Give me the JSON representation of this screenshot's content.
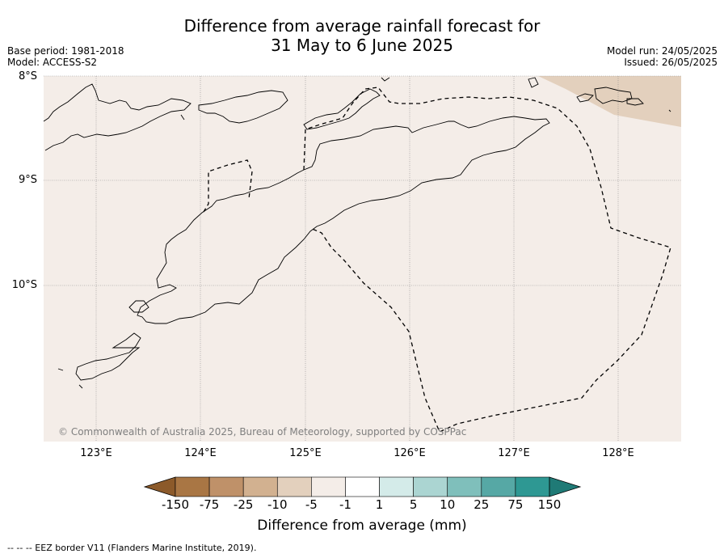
{
  "title_line1": "Difference from average rainfall forecast for",
  "title_line2": "31 May to 6 June 2025",
  "base_period": "Base period: 1981-2018",
  "model": "Model: ACCESS-S2",
  "model_run": "Model run: 24/05/2025",
  "issued": "Issued: 26/05/2025",
  "copyright": "© Commonwealth of Australia 2025, Bureau of Meteorology, supported by COSPPac",
  "lat_ticks": [
    "8°S",
    "9°S",
    "10°S"
  ],
  "lon_ticks": [
    "123°E",
    "124°E",
    "125°E",
    "126°E",
    "127°E",
    "128°E"
  ],
  "colorbar": {
    "title": "Difference from average (mm)",
    "labels": [
      "-150",
      "-75",
      "-25",
      "-10",
      "-5",
      "-1",
      "1",
      "5",
      "10",
      "25",
      "75",
      "150"
    ],
    "colors": [
      "#8c5a2a",
      "#a97644",
      "#bf9169",
      "#d2b190",
      "#e3d0bd",
      "#f4ede8",
      "#ffffff",
      "#d4ebe9",
      "#abd5d2",
      "#7fbfbb",
      "#56a8a5",
      "#2e9893",
      "#1f7a76"
    ]
  },
  "colors": {
    "map_background": "#f4ede8",
    "dry_anomaly": "#e3d0bd",
    "coastline": "#000000"
  },
  "footer": "--  --  -- EEZ border V11 (Flanders Marine Institute, 2019)."
}
